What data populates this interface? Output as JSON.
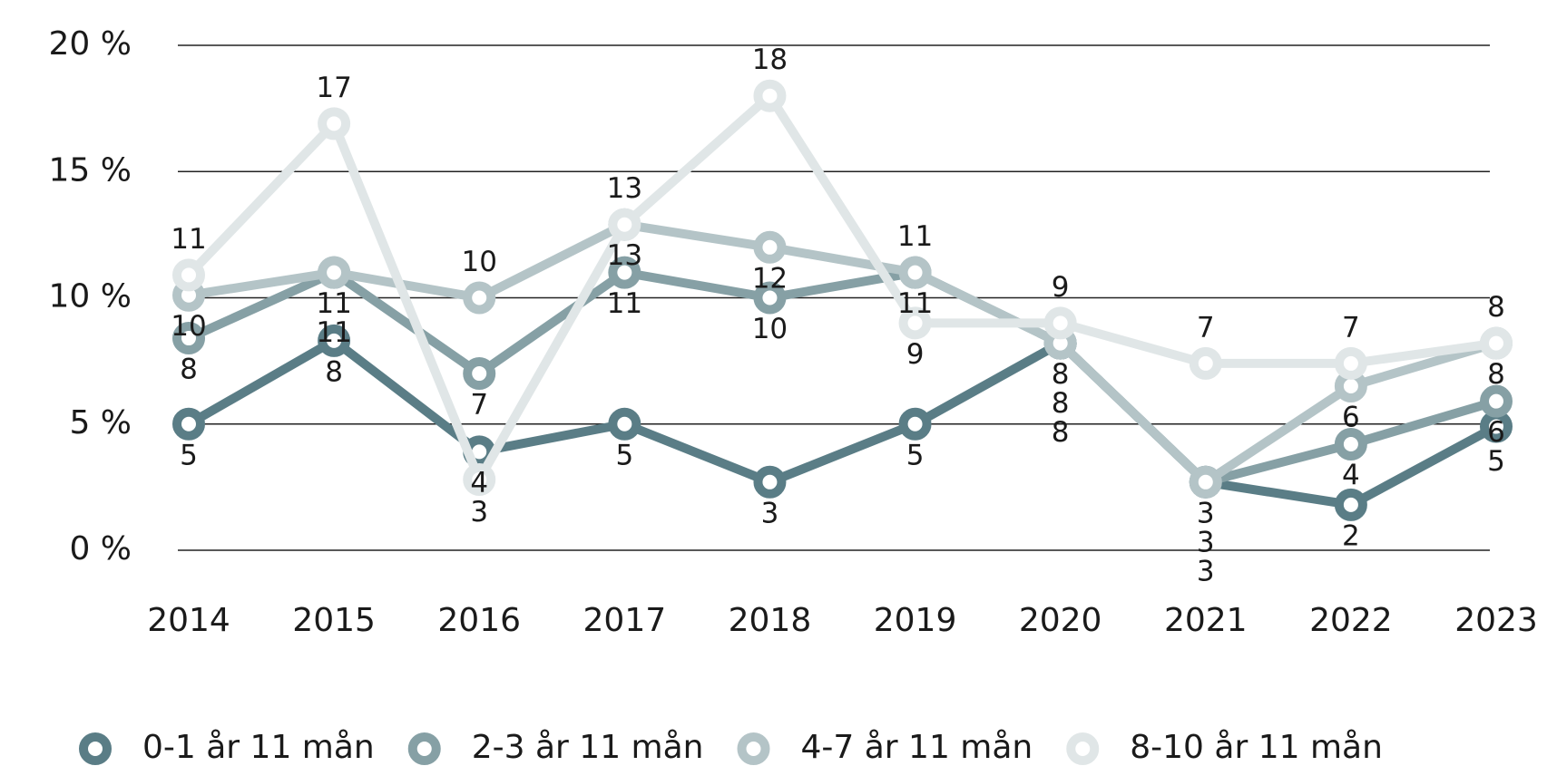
{
  "chart_data": {
    "type": "line",
    "categories": [
      "2014",
      "2015",
      "2016",
      "2017",
      "2018",
      "2019",
      "2020",
      "2021",
      "2022",
      "2023"
    ],
    "ylim": [
      0,
      20
    ],
    "yticks": [
      {
        "value": 0,
        "label": "0 %"
      },
      {
        "value": 5,
        "label": "5 %"
      },
      {
        "value": 10,
        "label": "10 %"
      },
      {
        "value": 15,
        "label": "15 %"
      },
      {
        "value": 20,
        "label": "20 %"
      }
    ],
    "grid": true,
    "legend": "bottom",
    "series": [
      {
        "name": "0-1 år 11 mån",
        "color": "#5a7d86",
        "values": [
          5.0,
          8.3,
          3.9,
          5.0,
          2.7,
          5.0,
          8.2,
          2.7,
          1.8,
          4.9
        ],
        "value_labels": [
          "5",
          "8",
          "4",
          "5",
          "3",
          "5",
          "8",
          "3",
          "2",
          "5"
        ]
      },
      {
        "name": "2-3 år 11 mån",
        "color": "#86a0a5",
        "values": [
          8.4,
          11.0,
          7.0,
          11.0,
          10.0,
          11.0,
          8.2,
          2.7,
          4.2,
          5.9
        ],
        "value_labels": [
          "8",
          "11",
          "7",
          "11",
          "10",
          "11",
          "8",
          "3",
          "4",
          "6"
        ]
      },
      {
        "name": "4-7 år 11 mån",
        "color": "#b4c4c7",
        "values": [
          10.1,
          11.0,
          10.0,
          12.9,
          12.0,
          11.0,
          8.2,
          2.7,
          6.5,
          8.2
        ],
        "value_labels": [
          "10",
          "11",
          "10",
          "13",
          "12",
          "11",
          "8",
          "3",
          "6",
          "8"
        ]
      },
      {
        "name": "8-10 år 11 mån",
        "color": "#e0e6e7",
        "values": [
          10.9,
          16.9,
          2.8,
          12.9,
          18.0,
          9.0,
          9.0,
          7.4,
          7.4,
          8.2
        ],
        "value_labels": [
          "11",
          "17",
          "3",
          "13",
          "18",
          "9",
          "9",
          "7",
          "7",
          "8"
        ]
      }
    ]
  }
}
